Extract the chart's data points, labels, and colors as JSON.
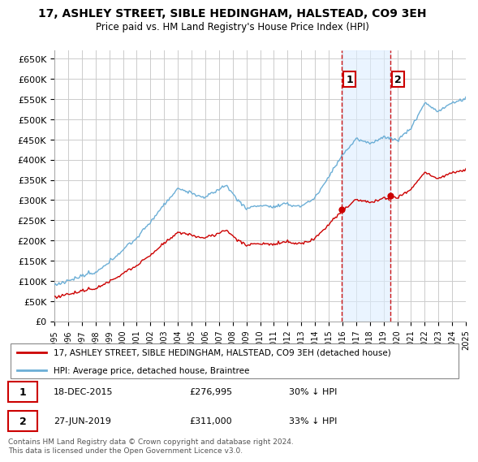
{
  "title": "17, ASHLEY STREET, SIBLE HEDINGHAM, HALSTEAD, CO9 3EH",
  "subtitle": "Price paid vs. HM Land Registry's House Price Index (HPI)",
  "ylim": [
    0,
    670000
  ],
  "yticks": [
    0,
    50000,
    100000,
    150000,
    200000,
    250000,
    300000,
    350000,
    400000,
    450000,
    500000,
    550000,
    600000,
    650000
  ],
  "ytick_labels": [
    "£0",
    "£50K",
    "£100K",
    "£150K",
    "£200K",
    "£250K",
    "£300K",
    "£350K",
    "£400K",
    "£450K",
    "£500K",
    "£550K",
    "£600K",
    "£650K"
  ],
  "hpi_color": "#6baed6",
  "price_color": "#cc0000",
  "transaction1_date": 2015.96,
  "transaction1_price": 276995,
  "transaction2_date": 2019.49,
  "transaction2_price": 311000,
  "vline_color": "#cc0000",
  "highlight_color": "#ddeeff",
  "legend_label_price": "17, ASHLEY STREET, SIBLE HEDINGHAM, HALSTEAD, CO9 3EH (detached house)",
  "legend_label_hpi": "HPI: Average price, detached house, Braintree",
  "footer": "Contains HM Land Registry data © Crown copyright and database right 2024.\nThis data is licensed under the Open Government Licence v3.0.",
  "background_color": "#ffffff",
  "grid_color": "#cccccc",
  "xmin": 1995,
  "xmax": 2025
}
